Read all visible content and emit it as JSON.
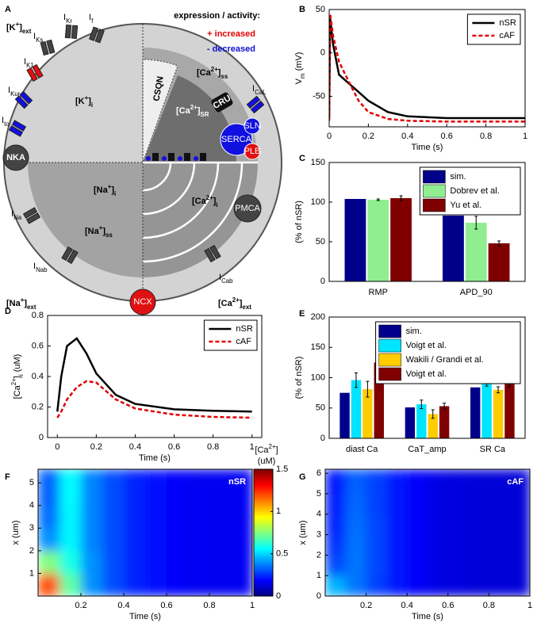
{
  "diagram": {
    "panel_label": "A",
    "legend_title": "expression / activity:",
    "increased": "+ increased",
    "decreased": "- decreased",
    "labels": [
      [
        {
          "t": "[K"
        },
        {
          "t": "+",
          "s": "sup"
        },
        {
          "t": "]"
        },
        {
          "t": "ext",
          "s": "sub"
        }
      ],
      [
        {
          "t": "I"
        },
        {
          "t": "f",
          "s": "sub"
        }
      ],
      [
        {
          "t": "I"
        },
        {
          "t": "Kr",
          "s": "sub"
        }
      ],
      [
        {
          "t": "I"
        },
        {
          "t": "Ks",
          "s": "sub"
        }
      ],
      [
        {
          "t": "I"
        },
        {
          "t": "K1",
          "s": "sub"
        }
      ],
      [
        {
          "t": "I"
        },
        {
          "t": "Kur",
          "s": "sub"
        }
      ],
      [
        {
          "t": "I"
        },
        {
          "t": "to",
          "s": "sub"
        }
      ],
      [
        {
          "t": "[K"
        },
        {
          "t": "+",
          "s": "sup"
        },
        {
          "t": "]"
        },
        {
          "t": "i",
          "s": "sub"
        }
      ],
      [
        {
          "t": "NKA"
        }
      ],
      [
        {
          "t": "[Na"
        },
        {
          "t": "+",
          "s": "sup"
        },
        {
          "t": "]"
        },
        {
          "t": "i",
          "s": "sub"
        }
      ],
      [
        {
          "t": "[Na"
        },
        {
          "t": "+",
          "s": "sup"
        },
        {
          "t": "]"
        },
        {
          "t": "ss",
          "s": "sub"
        }
      ],
      [
        {
          "t": "I"
        },
        {
          "t": "Na",
          "s": "sub"
        }
      ],
      [
        {
          "t": "I"
        },
        {
          "t": "Nab",
          "s": "sub"
        }
      ],
      [
        {
          "t": "[Na"
        },
        {
          "t": "+",
          "s": "sup"
        },
        {
          "t": "]"
        },
        {
          "t": "ext",
          "s": "sub"
        }
      ],
      [
        {
          "t": "NCX"
        }
      ],
      [
        {
          "t": "I"
        },
        {
          "t": "Cab",
          "s": "sub"
        }
      ],
      [
        {
          "t": "[Ca"
        },
        {
          "t": "2+",
          "s": "sup"
        },
        {
          "t": "]"
        },
        {
          "t": "ext",
          "s": "sub"
        }
      ],
      [
        {
          "t": "PMCA"
        }
      ],
      [
        {
          "t": "I"
        },
        {
          "t": "CaL",
          "s": "sub"
        }
      ],
      [
        {
          "t": "[Ca"
        },
        {
          "t": "2+",
          "s": "sup"
        },
        {
          "t": "]"
        },
        {
          "t": "ss",
          "s": "sub"
        }
      ],
      [
        {
          "t": "CSQN"
        }
      ],
      [
        {
          "t": "[Ca"
        },
        {
          "t": "2+",
          "s": "sup"
        },
        {
          "t": "]"
        },
        {
          "t": "SR",
          "s": "sub"
        }
      ],
      [
        {
          "t": "CRU"
        }
      ],
      [
        {
          "t": "SERCA"
        }
      ],
      [
        {
          "t": "SLN"
        }
      ],
      [
        {
          "t": "PLB"
        }
      ],
      [
        {
          "t": "[Ca"
        },
        {
          "t": "2+",
          "s": "sup"
        },
        {
          "t": "]"
        },
        {
          "t": "i",
          "s": "sub"
        }
      ]
    ]
  },
  "chart_data": [
    {
      "type": "line",
      "panel_label": "B",
      "ylabel_parts": [
        {
          "t": "V"
        },
        {
          "t": "m",
          "s": "sub"
        },
        {
          "t": " (mV)"
        }
      ],
      "xlabel": "Time (s)",
      "x": [
        0,
        0.005,
        0.02,
        0.05,
        0.1,
        0.15,
        0.2,
        0.3,
        0.4,
        0.6,
        0.8,
        1
      ],
      "series": [
        {
          "name": "nSR",
          "color": "#000000",
          "dash": false,
          "values": [
            -75,
            40,
            10,
            -25,
            -35,
            -45,
            -55,
            -68,
            -73,
            -75,
            -75,
            -75
          ]
        },
        {
          "name": "cAF",
          "color": "#e00000",
          "dash": true,
          "values": [
            -78,
            45,
            20,
            -10,
            -33,
            -55,
            -68,
            -76,
            -78,
            -79,
            -79,
            -79
          ]
        }
      ],
      "xlim": [
        0,
        1
      ],
      "xticks": [
        0,
        0.2,
        0.4,
        0.6,
        0.8,
        1
      ],
      "ylim": [
        -85,
        50
      ],
      "yticks": [
        -50,
        0,
        50
      ],
      "legend": "upper right"
    },
    {
      "type": "bar",
      "panel_label": "C",
      "ylabel_parts": [
        {
          "t": "(% of nSR)"
        }
      ],
      "categories": [
        "RMP",
        "APD_90"
      ],
      "series": [
        {
          "name": "sim.",
          "color": "#00008b",
          "values": [
            104,
            83
          ]
        },
        {
          "name": "Dobrev et al.",
          "color": "#90ee90",
          "values": [
            103,
            74
          ],
          "errors": [
            1,
            8
          ]
        },
        {
          "name": "Yu et al.",
          "color": "#800000",
          "values": [
            105,
            48
          ],
          "errors": [
            3,
            3
          ]
        }
      ],
      "ylim": [
        0,
        150
      ],
      "yticks": [
        0,
        50,
        100,
        150
      ],
      "legend": "upper right"
    },
    {
      "type": "line",
      "panel_label": "D",
      "ylabel_parts": [
        {
          "t": "[Ca"
        },
        {
          "t": "2+",
          "s": "sup"
        },
        {
          "t": "]"
        },
        {
          "t": "i",
          "s": "sub"
        },
        {
          "t": " (uM)"
        }
      ],
      "xlabel": "Time (s)",
      "x": [
        0,
        0.02,
        0.05,
        0.1,
        0.15,
        0.2,
        0.3,
        0.4,
        0.6,
        0.8,
        1
      ],
      "series": [
        {
          "name": "nSR",
          "color": "#000000",
          "dash": false,
          "values": [
            0.17,
            0.4,
            0.6,
            0.65,
            0.55,
            0.42,
            0.28,
            0.22,
            0.185,
            0.175,
            0.17
          ]
        },
        {
          "name": "cAF",
          "color": "#e00000",
          "dash": true,
          "values": [
            0.13,
            0.17,
            0.25,
            0.33,
            0.37,
            0.36,
            0.25,
            0.19,
            0.15,
            0.135,
            0.13
          ]
        }
      ],
      "xlim": [
        -0.05,
        1.05
      ],
      "xticks": [
        0,
        0.2,
        0.4,
        0.6,
        0.8,
        1
      ],
      "ylim": [
        0,
        0.8
      ],
      "yticks": [
        0,
        0.2,
        0.4,
        0.6,
        0.8
      ],
      "legend": "upper right"
    },
    {
      "type": "bar",
      "panel_label": "E",
      "ylabel_parts": [
        {
          "t": "(% of nSR)"
        }
      ],
      "categories": [
        "diast Ca",
        "CaT_amp",
        "SR Ca"
      ],
      "series": [
        {
          "name": "sim.",
          "color": "#00008b",
          "values": [
            75,
            51,
            84
          ]
        },
        {
          "name": "Voigt et al.",
          "color": "#00e5ff",
          "values": [
            96,
            56,
            103
          ],
          "errors": [
            12,
            7,
            17
          ]
        },
        {
          "name": "Wakili / Grandi et al.",
          "color": "#ffcc00",
          "values": [
            81,
            40,
            80
          ],
          "errors": [
            13,
            7,
            5
          ]
        },
        {
          "name": "Voigt et al.",
          "color": "#800000",
          "values": [
            125,
            53,
            97
          ],
          "errors": [
            13,
            5,
            12
          ]
        }
      ],
      "ylim": [
        0,
        200
      ],
      "yticks": [
        0,
        50,
        100,
        150,
        200
      ],
      "legend": "upper right"
    },
    {
      "type": "heatmap",
      "panel_label": "F",
      "annotation": "nSR",
      "ylabel": "x (um)",
      "xlabel": "Time (s)",
      "xbins": [
        0,
        0.1,
        0.2,
        0.3,
        0.4,
        0.5,
        0.6,
        0.7,
        0.8,
        0.9,
        1
      ],
      "ybins": [
        0,
        1,
        2,
        3,
        4,
        5,
        5.6
      ],
      "z": [
        [
          1.2,
          0.7,
          0.4,
          0.3,
          0.24,
          0.2,
          0.18,
          0.17,
          0.17,
          0.17
        ],
        [
          0.75,
          0.6,
          0.4,
          0.3,
          0.24,
          0.2,
          0.18,
          0.17,
          0.17,
          0.17
        ],
        [
          0.4,
          0.55,
          0.38,
          0.3,
          0.24,
          0.2,
          0.18,
          0.17,
          0.17,
          0.17
        ],
        [
          0.35,
          0.55,
          0.38,
          0.3,
          0.24,
          0.2,
          0.18,
          0.17,
          0.17,
          0.17
        ],
        [
          0.33,
          0.56,
          0.38,
          0.3,
          0.24,
          0.2,
          0.18,
          0.17,
          0.17,
          0.17
        ],
        [
          0.33,
          0.56,
          0.38,
          0.3,
          0.24,
          0.2,
          0.18,
          0.17,
          0.17,
          0.17
        ]
      ],
      "xlim": [
        0,
        1
      ],
      "xticks": [
        0.2,
        0.4,
        0.6,
        0.8,
        1
      ],
      "ylim": [
        0,
        5.6
      ],
      "yticks": [
        1,
        2,
        3,
        4,
        5
      ],
      "clim": [
        0,
        1.5
      ],
      "colorbar": {
        "label_parts": [
          {
            "t": "[Ca"
          },
          {
            "t": "2+",
            "s": "sup"
          },
          {
            "t": "]"
          }
        ],
        "unit": "(uM)",
        "ticks": [
          0,
          0.5,
          1,
          1.5
        ]
      }
    },
    {
      "type": "heatmap",
      "panel_label": "G",
      "annotation": "cAF",
      "ylabel": "x (um)",
      "xlabel": "Time (s)",
      "xbins": [
        0,
        0.1,
        0.2,
        0.3,
        0.4,
        0.5,
        0.6,
        0.7,
        0.8,
        0.9,
        1
      ],
      "ybins": [
        0,
        1,
        2,
        3,
        4,
        5,
        6,
        6.2
      ],
      "z": [
        [
          0.45,
          0.36,
          0.28,
          0.22,
          0.18,
          0.15,
          0.14,
          0.13,
          0.13,
          0.13
        ],
        [
          0.3,
          0.36,
          0.29,
          0.22,
          0.18,
          0.15,
          0.14,
          0.13,
          0.13,
          0.13
        ],
        [
          0.26,
          0.36,
          0.29,
          0.22,
          0.18,
          0.15,
          0.14,
          0.13,
          0.13,
          0.13
        ],
        [
          0.24,
          0.35,
          0.29,
          0.22,
          0.18,
          0.15,
          0.14,
          0.13,
          0.13,
          0.13
        ],
        [
          0.23,
          0.34,
          0.28,
          0.22,
          0.18,
          0.15,
          0.14,
          0.13,
          0.13,
          0.13
        ],
        [
          0.22,
          0.33,
          0.28,
          0.22,
          0.18,
          0.15,
          0.14,
          0.13,
          0.13,
          0.13
        ],
        [
          0.22,
          0.32,
          0.28,
          0.22,
          0.18,
          0.15,
          0.14,
          0.13,
          0.13,
          0.13
        ]
      ],
      "xlim": [
        0,
        1
      ],
      "xticks": [
        0.2,
        0.4,
        0.6,
        0.8,
        1
      ],
      "ylim": [
        0,
        6.2
      ],
      "yticks": [
        0,
        1,
        2,
        3,
        4,
        5,
        6
      ],
      "clim": [
        0,
        1.5
      ]
    }
  ]
}
